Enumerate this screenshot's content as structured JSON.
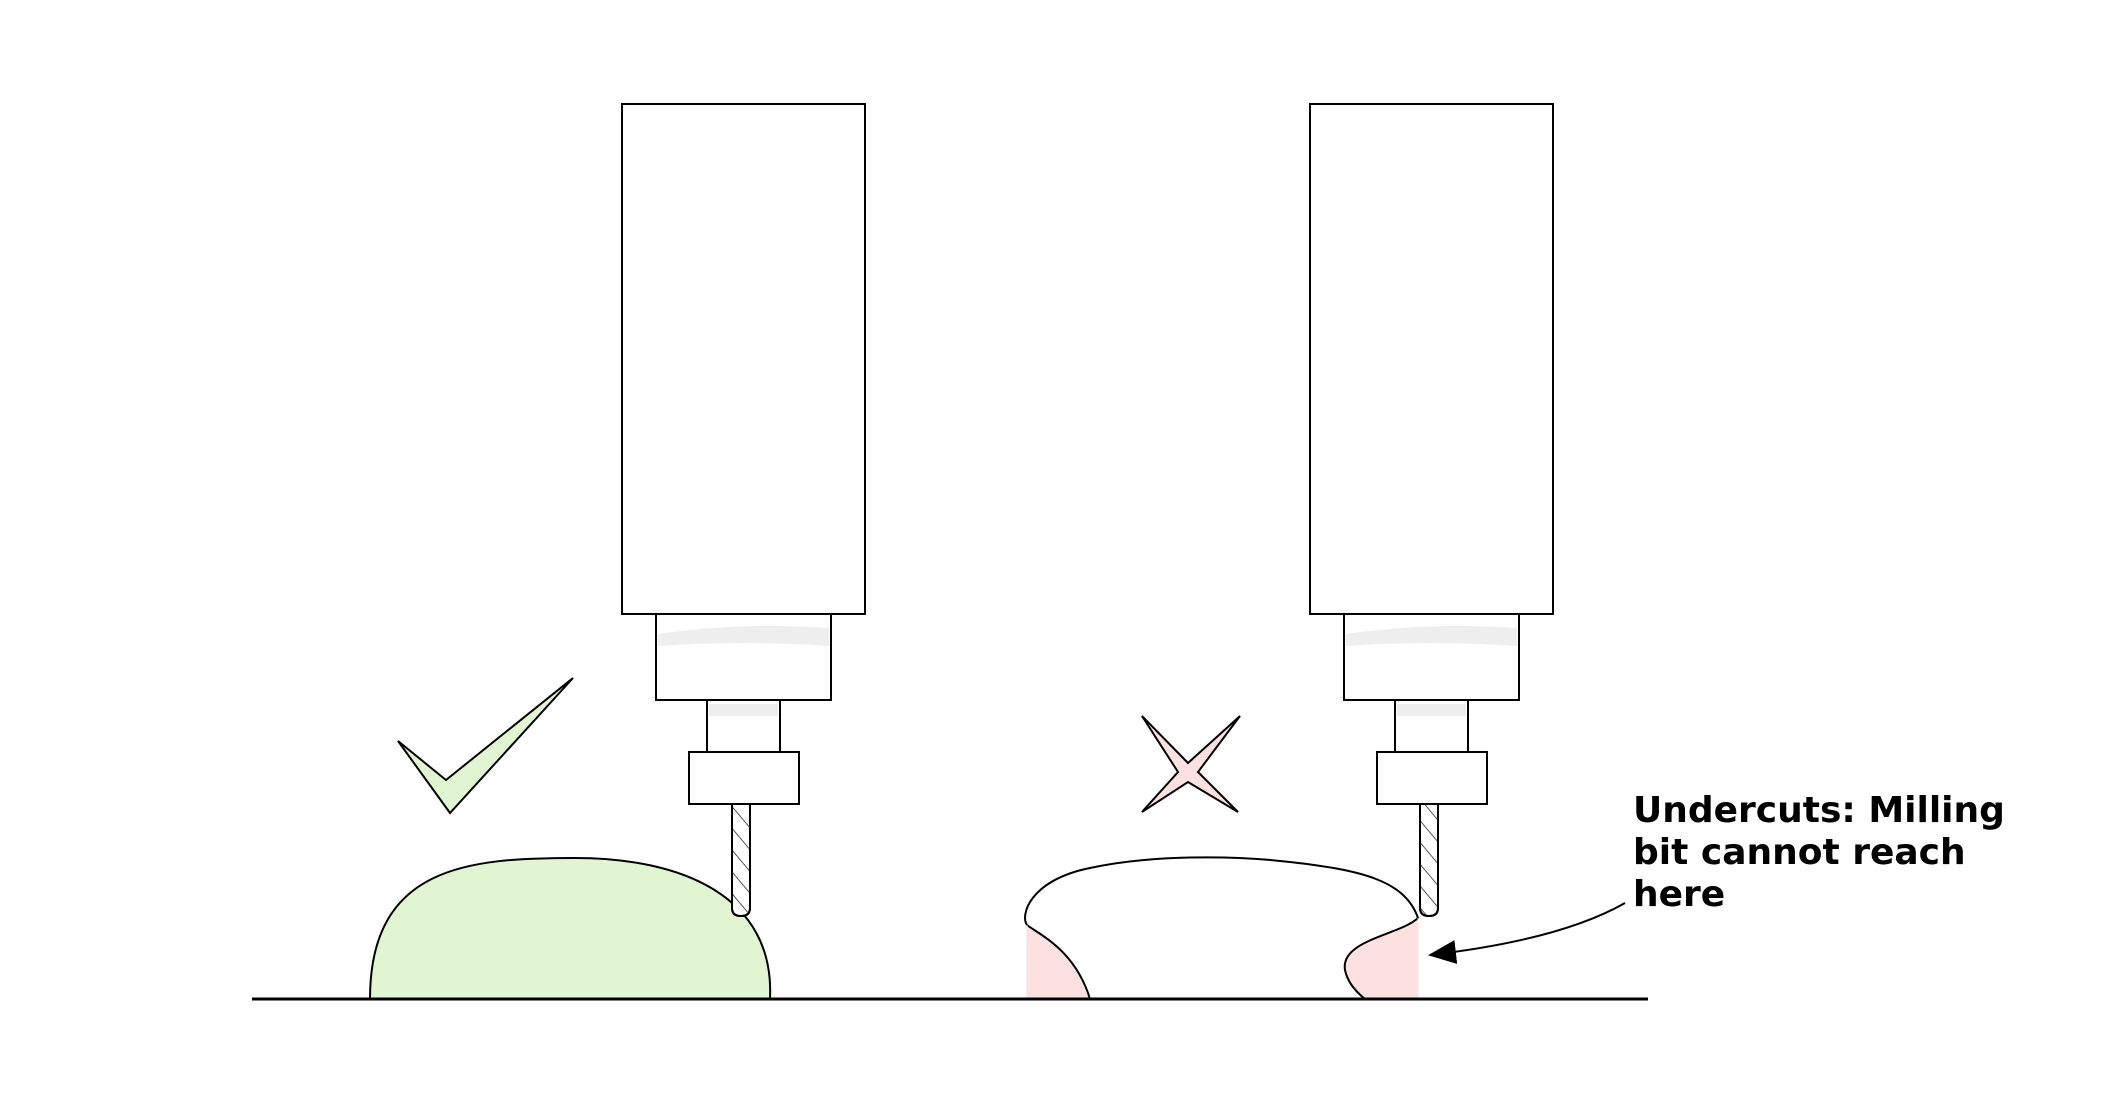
{
  "colors": {
    "stroke": "#000000",
    "background": "#ffffff",
    "good_fill": "#e2f5d3",
    "bad_fill": "#fde0e0",
    "collar_highlight": "#eeeeee"
  },
  "icons": {
    "good": "check-mark-icon",
    "bad": "cross-star-icon"
  },
  "annotation": {
    "lines": [
      "Undercuts: Milling",
      "bit cannot reach",
      "here"
    ]
  }
}
